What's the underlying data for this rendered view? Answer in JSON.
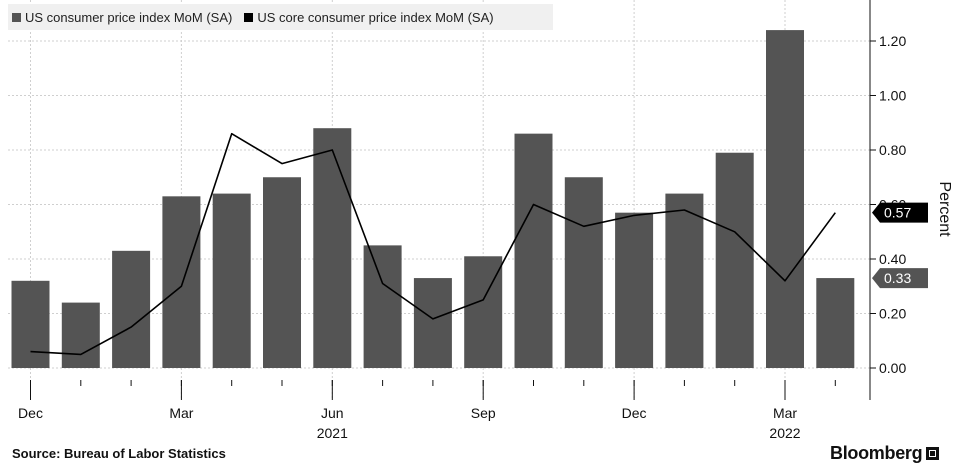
{
  "legend": {
    "bar_label": "US consumer price index MoM (SA)",
    "line_label": "US core consumer price index MoM (SA)"
  },
  "source": "Source: Bureau of Labor Statistics",
  "brand": "Bloomberg",
  "colors": {
    "bar": "#545454",
    "line": "#000000",
    "grid": "#cfcfcf",
    "tag_bar": "#545454",
    "tag_line": "#000000"
  },
  "chart_data": {
    "type": "bar",
    "title": "",
    "xlabel": "",
    "ylabel": "Percent",
    "ylim": [
      -0.1,
      1.35
    ],
    "ytick_values": [
      0.0,
      0.2,
      0.4,
      0.6,
      0.8,
      1.0,
      1.2
    ],
    "ytick_labels": [
      "0.00",
      "0.20",
      "0.40",
      "0.60",
      "0.80",
      "1.00",
      "1.20"
    ],
    "categories": [
      "Dec 2020",
      "Jan 2021",
      "Feb 2021",
      "Mar 2021",
      "Apr 2021",
      "May 2021",
      "Jun 2021",
      "Jul 2021",
      "Aug 2021",
      "Sep 2021",
      "Oct 2021",
      "Nov 2021",
      "Dec 2021",
      "Jan 2022",
      "Feb 2022",
      "Mar 2022",
      "Apr 2022"
    ],
    "x_tick_labels": [
      {
        "index": 0,
        "label": "Dec",
        "year": ""
      },
      {
        "index": 3,
        "label": "Mar",
        "year": ""
      },
      {
        "index": 6,
        "label": "Jun",
        "year": "2021"
      },
      {
        "index": 9,
        "label": "Sep",
        "year": ""
      },
      {
        "index": 12,
        "label": "Dec",
        "year": ""
      },
      {
        "index": 15,
        "label": "Mar",
        "year": "2022"
      }
    ],
    "series": [
      {
        "name": "US consumer price index MoM (SA)",
        "kind": "bar",
        "values": [
          0.32,
          0.24,
          0.43,
          0.63,
          0.64,
          0.7,
          0.88,
          0.45,
          0.33,
          0.41,
          0.86,
          0.7,
          0.57,
          0.64,
          0.79,
          1.24,
          0.33
        ]
      },
      {
        "name": "US core consumer price index MoM (SA)",
        "kind": "line",
        "values": [
          0.06,
          0.05,
          0.15,
          0.3,
          0.86,
          0.75,
          0.8,
          0.31,
          0.18,
          0.25,
          0.6,
          0.52,
          0.56,
          0.58,
          0.5,
          0.32,
          0.57
        ]
      }
    ],
    "last_value_tags": [
      {
        "series": "line",
        "label": "0.57",
        "value": 0.57
      },
      {
        "series": "bar",
        "label": "0.33",
        "value": 0.33
      }
    ],
    "grid": true,
    "legend_position": "top-left"
  }
}
